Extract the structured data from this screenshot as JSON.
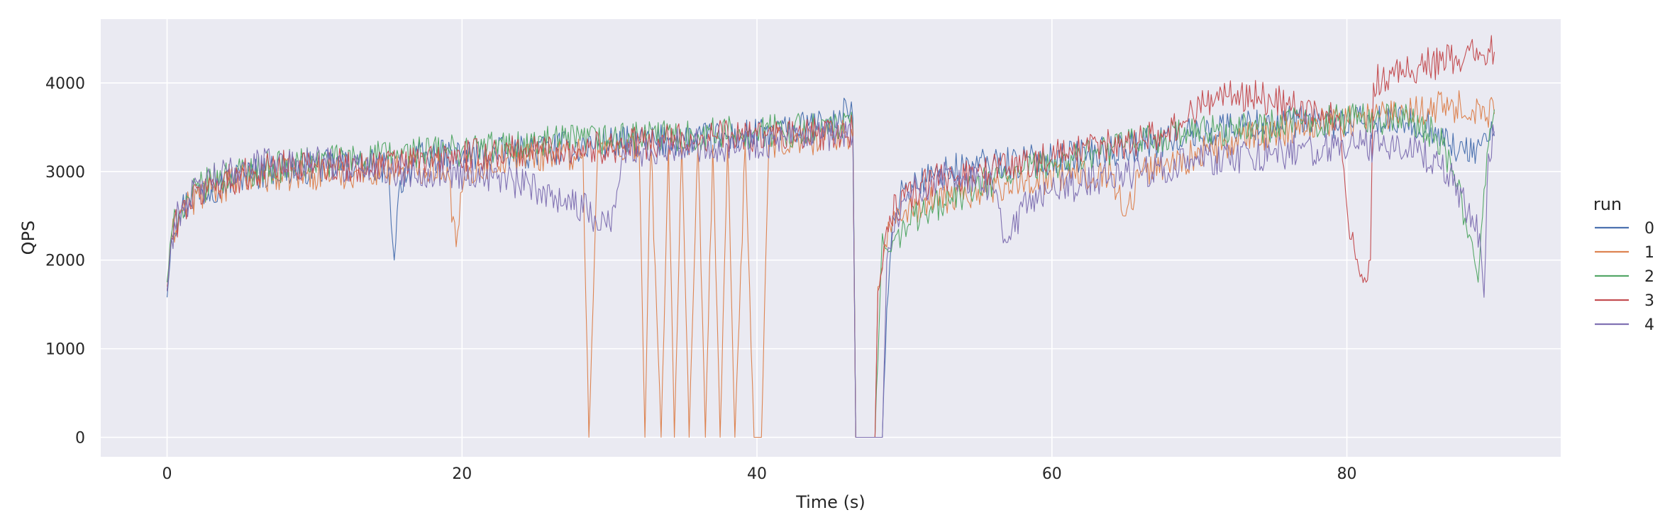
{
  "chart_data": {
    "type": "line",
    "title": "",
    "xlabel": "Time (s)",
    "ylabel": "QPS",
    "xlim": [
      -4.5,
      94.5
    ],
    "ylim": [
      -220,
      4720
    ],
    "xticks": [
      0,
      20,
      40,
      60,
      80
    ],
    "yticks": [
      0,
      1000,
      2000,
      3000,
      4000
    ],
    "grid": true,
    "legend": {
      "title": "run",
      "placement": "right"
    },
    "series": [
      {
        "name": "0",
        "color": "#4c72b0",
        "points": [
          [
            0,
            1580
          ],
          [
            0.3,
            2300
          ],
          [
            0.8,
            2550
          ],
          [
            1.5,
            2680
          ],
          [
            3,
            2820
          ],
          [
            5,
            2950
          ],
          [
            7,
            3000
          ],
          [
            10,
            3050
          ],
          [
            13,
            3080
          ],
          [
            15,
            3050
          ],
          [
            15.4,
            2000
          ],
          [
            15.8,
            2900
          ],
          [
            17,
            3150
          ],
          [
            20,
            3180
          ],
          [
            23,
            3200
          ],
          [
            26,
            3250
          ],
          [
            30,
            3320
          ],
          [
            34,
            3350
          ],
          [
            38,
            3380
          ],
          [
            42,
            3450
          ],
          [
            45.5,
            3550
          ],
          [
            46,
            3800
          ],
          [
            46.3,
            3650
          ],
          [
            46.5,
            3600
          ],
          [
            46.7,
            0
          ],
          [
            47.5,
            0
          ],
          [
            48.5,
            0
          ],
          [
            48.8,
            1450
          ],
          [
            49.2,
            2500
          ],
          [
            50,
            2800
          ],
          [
            52,
            2950
          ],
          [
            54,
            3050
          ],
          [
            56,
            3100
          ],
          [
            58,
            3100
          ],
          [
            60,
            3150
          ],
          [
            63,
            3200
          ],
          [
            66,
            3300
          ],
          [
            69,
            3400
          ],
          [
            72,
            3500
          ],
          [
            75,
            3550
          ],
          [
            78,
            3550
          ],
          [
            81,
            3550
          ],
          [
            84,
            3550
          ],
          [
            86,
            3500
          ],
          [
            87,
            3300
          ],
          [
            88,
            3200
          ],
          [
            89,
            3300
          ],
          [
            90,
            3450
          ]
        ]
      },
      {
        "name": "1",
        "color": "#dd8452",
        "points": [
          [
            0,
            1700
          ],
          [
            0.3,
            2250
          ],
          [
            0.8,
            2500
          ],
          [
            1.5,
            2650
          ],
          [
            3,
            2800
          ],
          [
            5,
            2900
          ],
          [
            7,
            2950
          ],
          [
            10,
            2980
          ],
          [
            13,
            3000
          ],
          [
            16,
            3050
          ],
          [
            19,
            3050
          ],
          [
            19.6,
            2150
          ],
          [
            20.2,
            3000
          ],
          [
            23,
            3150
          ],
          [
            26,
            3200
          ],
          [
            28.2,
            3200
          ],
          [
            28.6,
            0
          ],
          [
            29.2,
            3250
          ],
          [
            32,
            3300
          ],
          [
            32.4,
            0
          ],
          [
            32.8,
            3300
          ],
          [
            33.5,
            0
          ],
          [
            34,
            3300
          ],
          [
            34.4,
            0
          ],
          [
            34.9,
            3300
          ],
          [
            35.4,
            0
          ],
          [
            36,
            3300
          ],
          [
            36.5,
            0
          ],
          [
            37,
            3300
          ],
          [
            37.5,
            0
          ],
          [
            38,
            3300
          ],
          [
            38.5,
            0
          ],
          [
            39.2,
            3300
          ],
          [
            39.8,
            0
          ],
          [
            40.3,
            0
          ],
          [
            40.8,
            3300
          ],
          [
            43,
            3350
          ],
          [
            46,
            3450
          ],
          [
            46.5,
            3350
          ],
          [
            46.7,
            0
          ],
          [
            48,
            0
          ],
          [
            48.2,
            1700
          ],
          [
            49,
            2400
          ],
          [
            50,
            2550
          ],
          [
            52,
            2650
          ],
          [
            55,
            2800
          ],
          [
            58,
            2900
          ],
          [
            61,
            2950
          ],
          [
            64,
            3000
          ],
          [
            65,
            2500
          ],
          [
            66,
            3000
          ],
          [
            69,
            3150
          ],
          [
            72,
            3300
          ],
          [
            75,
            3450
          ],
          [
            78,
            3550
          ],
          [
            81,
            3600
          ],
          [
            84,
            3700
          ],
          [
            87,
            3750
          ],
          [
            88.5,
            3700
          ],
          [
            90,
            3650
          ]
        ]
      },
      {
        "name": "2",
        "color": "#55a868",
        "points": [
          [
            0,
            1750
          ],
          [
            0.3,
            2300
          ],
          [
            0.8,
            2550
          ],
          [
            1.5,
            2700
          ],
          [
            3,
            2900
          ],
          [
            5,
            3000
          ],
          [
            7,
            3050
          ],
          [
            10,
            3100
          ],
          [
            13,
            3150
          ],
          [
            16,
            3200
          ],
          [
            20,
            3250
          ],
          [
            24,
            3300
          ],
          [
            28,
            3350
          ],
          [
            32,
            3380
          ],
          [
            36,
            3420
          ],
          [
            40,
            3450
          ],
          [
            44,
            3480
          ],
          [
            46.5,
            3500
          ],
          [
            46.7,
            0
          ],
          [
            48,
            0
          ],
          [
            48.5,
            2300
          ],
          [
            49,
            2100
          ],
          [
            50,
            2400
          ],
          [
            52,
            2600
          ],
          [
            54,
            2750
          ],
          [
            56,
            2900
          ],
          [
            58,
            3000
          ],
          [
            60,
            3100
          ],
          [
            63,
            3200
          ],
          [
            66,
            3350
          ],
          [
            68,
            3400
          ],
          [
            71,
            3450
          ],
          [
            74,
            3500
          ],
          [
            77,
            3550
          ],
          [
            80,
            3600
          ],
          [
            83,
            3600
          ],
          [
            85,
            3550
          ],
          [
            86.5,
            3300
          ],
          [
            87.5,
            2800
          ],
          [
            88.5,
            2200
          ],
          [
            88.9,
            1750
          ],
          [
            89.3,
            2800
          ],
          [
            89.8,
            3500
          ],
          [
            90,
            3700
          ]
        ]
      },
      {
        "name": "3",
        "color": "#c44e52",
        "points": [
          [
            0,
            1650
          ],
          [
            0.3,
            2250
          ],
          [
            0.8,
            2500
          ],
          [
            1.5,
            2650
          ],
          [
            3,
            2850
          ],
          [
            5,
            2950
          ],
          [
            7,
            3050
          ],
          [
            10,
            3100
          ],
          [
            13,
            3050
          ],
          [
            16,
            3100
          ],
          [
            19,
            3150
          ],
          [
            22,
            3200
          ],
          [
            25,
            3250
          ],
          [
            28,
            3250
          ],
          [
            31,
            3300
          ],
          [
            34,
            3350
          ],
          [
            37,
            3400
          ],
          [
            40,
            3400
          ],
          [
            43,
            3400
          ],
          [
            46.5,
            3450
          ],
          [
            46.7,
            0
          ],
          [
            48,
            0
          ],
          [
            48.2,
            1650
          ],
          [
            49,
            2500
          ],
          [
            50,
            2700
          ],
          [
            52,
            2900
          ],
          [
            55,
            3000
          ],
          [
            58,
            3100
          ],
          [
            61,
            3200
          ],
          [
            64,
            3300
          ],
          [
            67,
            3400
          ],
          [
            69,
            3550
          ],
          [
            70,
            3800
          ],
          [
            72,
            3850
          ],
          [
            74,
            3850
          ],
          [
            76,
            3750
          ],
          [
            78,
            3650
          ],
          [
            79.5,
            3600
          ],
          [
            80,
            2600
          ],
          [
            80.8,
            1900
          ],
          [
            81.3,
            1750
          ],
          [
            81.6,
            2000
          ],
          [
            81.8,
            4000
          ],
          [
            83,
            4100
          ],
          [
            85,
            4200
          ],
          [
            87,
            4250
          ],
          [
            88,
            4300
          ],
          [
            89,
            4350
          ],
          [
            90,
            4350
          ]
        ]
      },
      {
        "name": "4",
        "color": "#8172b3",
        "points": [
          [
            0,
            1650
          ],
          [
            0.3,
            2250
          ],
          [
            0.8,
            2550
          ],
          [
            1.5,
            2700
          ],
          [
            3,
            2900
          ],
          [
            5,
            3050
          ],
          [
            7,
            3100
          ],
          [
            10,
            3100
          ],
          [
            13,
            3050
          ],
          [
            16,
            3000
          ],
          [
            19,
            3000
          ],
          [
            22,
            2950
          ],
          [
            25,
            2800
          ],
          [
            27,
            2700
          ],
          [
            29,
            2500
          ],
          [
            30,
            2400
          ],
          [
            31,
            3200
          ],
          [
            34,
            3300
          ],
          [
            38,
            3300
          ],
          [
            42,
            3350
          ],
          [
            46.5,
            3400
          ],
          [
            46.7,
            0
          ],
          [
            48.5,
            0
          ],
          [
            48.8,
            2000
          ],
          [
            50,
            2700
          ],
          [
            52,
            2900
          ],
          [
            54,
            2950
          ],
          [
            56,
            2800
          ],
          [
            57,
            2200
          ],
          [
            58,
            2600
          ],
          [
            60,
            2800
          ],
          [
            63,
            2900
          ],
          [
            66,
            3000
          ],
          [
            69,
            3100
          ],
          [
            72,
            3150
          ],
          [
            75,
            3200
          ],
          [
            78,
            3250
          ],
          [
            81,
            3300
          ],
          [
            84,
            3250
          ],
          [
            86,
            3150
          ],
          [
            87,
            3000
          ],
          [
            88,
            2600
          ],
          [
            89,
            2300
          ],
          [
            89.3,
            1580
          ],
          [
            89.6,
            3200
          ],
          [
            90,
            3400
          ]
        ]
      }
    ]
  }
}
